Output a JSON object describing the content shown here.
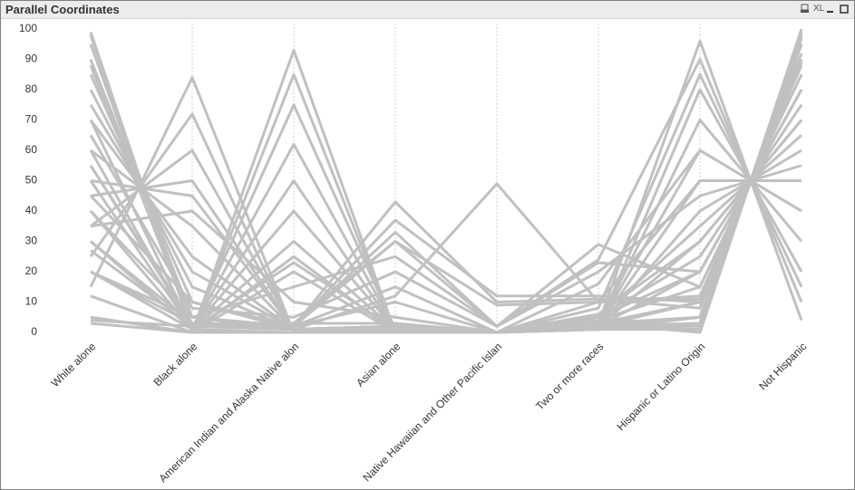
{
  "xl_button": "XL",
  "chart_data": {
    "type": "parallel",
    "title": "Parallel Coordinates",
    "categories": [
      "White alone",
      "Black alone",
      "American Indian and Alaska Native alon",
      "Asian alone",
      "Native Hawaiian and Other Pacific Islan",
      "Two or more races",
      "Hispanic or Latino Origin",
      "Not Hispanic"
    ],
    "color": "#c0c0c0",
    "ylim": [
      0,
      100
    ],
    "yticks": [
      0,
      10,
      20,
      30,
      40,
      50,
      60,
      70,
      80,
      90,
      100
    ],
    "series": [
      {
        "values": [
          99,
          0,
          0,
          1,
          0,
          1,
          3,
          97
        ]
      },
      {
        "values": [
          98,
          1,
          0,
          0,
          0,
          1,
          5,
          95
        ]
      },
      {
        "values": [
          95,
          2,
          1,
          1,
          0,
          2,
          10,
          90
        ]
      },
      {
        "values": [
          90,
          5,
          1,
          2,
          0,
          2,
          20,
          80
        ]
      },
      {
        "values": [
          85,
          10,
          1,
          2,
          0,
          2,
          30,
          70
        ]
      },
      {
        "values": [
          80,
          15,
          1,
          2,
          0,
          2,
          40,
          60
        ]
      },
      {
        "values": [
          75,
          20,
          1,
          2,
          0,
          2,
          50,
          50
        ]
      },
      {
        "values": [
          70,
          25,
          1,
          2,
          0,
          2,
          60,
          40
        ]
      },
      {
        "values": [
          60,
          35,
          1,
          2,
          0,
          2,
          70,
          30
        ]
      },
      {
        "values": [
          50,
          45,
          1,
          2,
          0,
          2,
          80,
          20
        ]
      },
      {
        "values": [
          88,
          2,
          3,
          3,
          0,
          3,
          96,
          4
        ]
      },
      {
        "values": [
          15,
          84,
          0,
          0,
          0,
          1,
          1,
          99
        ]
      },
      {
        "values": [
          25,
          72,
          0,
          1,
          0,
          2,
          2,
          98
        ]
      },
      {
        "values": [
          35,
          60,
          1,
          2,
          0,
          2,
          3,
          97
        ]
      },
      {
        "values": [
          45,
          50,
          1,
          2,
          0,
          2,
          5,
          95
        ]
      },
      {
        "values": [
          5,
          0,
          93,
          0,
          0,
          2,
          3,
          97
        ]
      },
      {
        "values": [
          12,
          0,
          85,
          0,
          0,
          3,
          5,
          95
        ]
      },
      {
        "values": [
          20,
          1,
          75,
          1,
          0,
          3,
          10,
          90
        ]
      },
      {
        "values": [
          30,
          1,
          62,
          1,
          0,
          4,
          15,
          85
        ]
      },
      {
        "values": [
          40,
          1,
          50,
          1,
          0,
          5,
          20,
          80
        ]
      },
      {
        "values": [
          50,
          1,
          40,
          1,
          0,
          5,
          25,
          75
        ]
      },
      {
        "values": [
          60,
          1,
          30,
          1,
          0,
          6,
          30,
          70
        ]
      },
      {
        "values": [
          70,
          1,
          23,
          1,
          0,
          5,
          35,
          65
        ]
      },
      {
        "values": [
          30,
          3,
          2,
          43,
          10,
          11,
          8,
          92
        ]
      },
      {
        "values": [
          40,
          5,
          2,
          37,
          12,
          12,
          10,
          90
        ]
      },
      {
        "values": [
          55,
          3,
          3,
          30,
          9,
          10,
          12,
          88
        ]
      },
      {
        "values": [
          27,
          2,
          1,
          12,
          49,
          10,
          11,
          89
        ]
      },
      {
        "values": [
          4,
          2,
          2,
          30,
          2,
          29,
          15,
          85
        ]
      },
      {
        "values": [
          20,
          5,
          15,
          25,
          2,
          23,
          20,
          80
        ]
      },
      {
        "values": [
          65,
          8,
          5,
          20,
          2,
          20,
          45,
          55
        ]
      },
      {
        "values": [
          45,
          10,
          2,
          15,
          0,
          16,
          60,
          40
        ]
      },
      {
        "values": [
          20,
          3,
          2,
          33,
          2,
          24,
          90,
          10
        ]
      },
      {
        "values": [
          55,
          2,
          2,
          10,
          0,
          8,
          85,
          15
        ]
      },
      {
        "values": [
          3,
          0,
          25,
          0,
          0,
          3,
          0,
          100
        ]
      },
      {
        "values": [
          5,
          0,
          20,
          0,
          0,
          2,
          1,
          99
        ]
      },
      {
        "values": [
          35,
          40,
          10,
          5,
          0,
          10,
          50,
          50
        ]
      }
    ]
  }
}
